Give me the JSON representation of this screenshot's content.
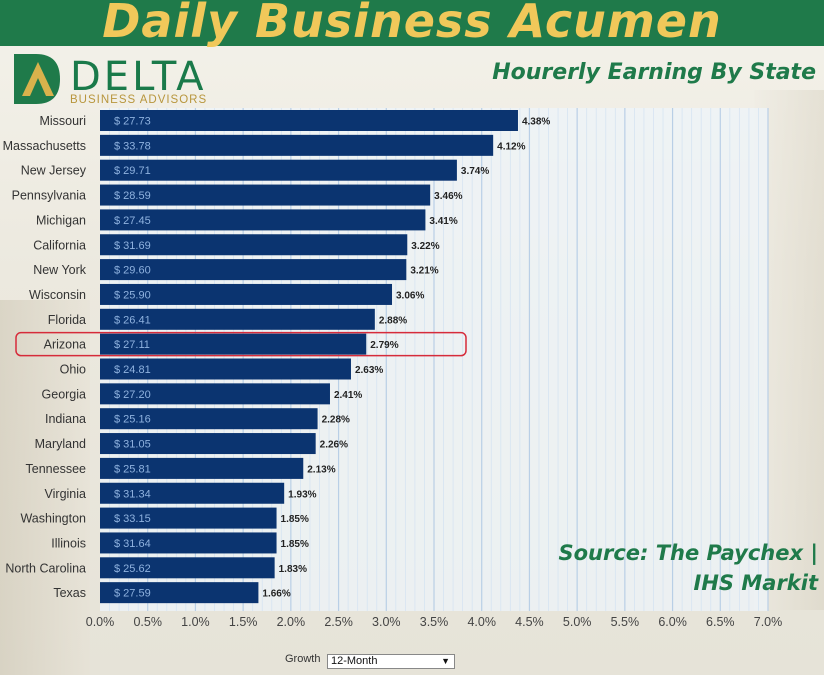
{
  "header": {
    "banner_title": "Daily Business Acumen",
    "subtitle": "Hourerly Earning By State",
    "logo_word": "DELTA",
    "logo_sub": "BUSINESS ADVISORS"
  },
  "source": {
    "line1": "Source: The Paychex |",
    "line2": "IHS Markit"
  },
  "controls": {
    "growth_label": "Growth",
    "growth_value": "12-Month"
  },
  "colors": {
    "bar": "#0b3470",
    "highlight": "#d62b3a",
    "brand_green": "#1f7a4a",
    "banner_text": "#f0c85a"
  },
  "chart_data": {
    "type": "bar",
    "orientation": "horizontal",
    "categories": [
      "Missouri",
      "Massachusetts",
      "New Jersey",
      "Pennsylvania",
      "Michigan",
      "California",
      "New York",
      "Wisconsin",
      "Florida",
      "Arizona",
      "Ohio",
      "Georgia",
      "Indiana",
      "Maryland",
      "Tennessee",
      "Virginia",
      "Washington",
      "Illinois",
      "North Carolina",
      "Texas"
    ],
    "values": [
      4.38,
      4.12,
      3.74,
      3.46,
      3.41,
      3.22,
      3.21,
      3.06,
      2.88,
      2.79,
      2.63,
      2.41,
      2.28,
      2.26,
      2.13,
      1.93,
      1.85,
      1.85,
      1.83,
      1.66
    ],
    "value_labels": [
      "4.38%",
      "4.12%",
      "3.74%",
      "3.46%",
      "3.41%",
      "3.22%",
      "3.21%",
      "3.06%",
      "2.88%",
      "2.79%",
      "2.63%",
      "2.41%",
      "2.28%",
      "2.26%",
      "2.13%",
      "1.93%",
      "1.85%",
      "1.85%",
      "1.83%",
      "1.66%"
    ],
    "hourly_labels": [
      "$ 27.73",
      "$ 33.78",
      "$ 29.71",
      "$ 28.59",
      "$ 27.45",
      "$ 31.69",
      "$ 29.60",
      "$ 25.90",
      "$ 26.41",
      "$ 27.11",
      "$ 24.81",
      "$ 27.20",
      "$ 25.16",
      "$ 31.05",
      "$ 25.81",
      "$ 31.34",
      "$ 33.15",
      "$ 31.64",
      "$ 25.62",
      "$ 27.59"
    ],
    "highlighted": "Arizona",
    "xlim": [
      0,
      7.0
    ],
    "xticks": [
      "0.0%",
      "0.5%",
      "1.0%",
      "1.5%",
      "2.0%",
      "2.5%",
      "3.0%",
      "3.5%",
      "4.0%",
      "4.5%",
      "5.0%",
      "5.5%",
      "6.0%",
      "6.5%",
      "7.0%"
    ],
    "grid": true
  }
}
